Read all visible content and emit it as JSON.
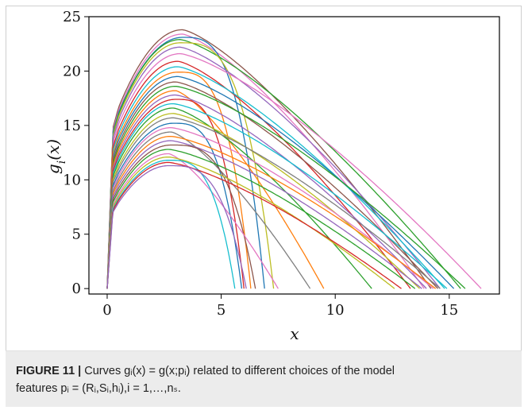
{
  "chart_data": {
    "type": "line",
    "xlabel": "x",
    "ylabel": "g_i(x)",
    "xlim": [
      -0.8,
      17.2
    ],
    "ylim": [
      -0.5,
      25
    ],
    "xticks": [
      0,
      5,
      10,
      15
    ],
    "yticks": [
      0,
      5,
      10,
      15,
      20,
      25
    ],
    "grid": false,
    "legend": "none",
    "curves": [
      {
        "peak": 23.8,
        "xpeak": 3.3,
        "end": 14.2,
        "color": "#8c564b"
      },
      {
        "peak": 23.4,
        "xpeak": 3.3,
        "end": 13.9,
        "color": "#e377c2"
      },
      {
        "peak": 23.1,
        "xpeak": 3.3,
        "end": 6.9,
        "color": "#1f77b4"
      },
      {
        "peak": 22.9,
        "xpeak": 3.2,
        "end": 15.5,
        "color": "#2ca02c"
      },
      {
        "peak": 22.6,
        "xpeak": 3.2,
        "end": 7.3,
        "color": "#bcbd22"
      },
      {
        "peak": 22.2,
        "xpeak": 3.2,
        "end": 14.6,
        "color": "#9467bd"
      },
      {
        "peak": 21.6,
        "xpeak": 3.2,
        "end": 16.4,
        "color": "#e377c2"
      },
      {
        "peak": 20.9,
        "xpeak": 3.1,
        "end": 13.3,
        "color": "#d62728"
      },
      {
        "peak": 20.4,
        "xpeak": 3.1,
        "end": 14.8,
        "color": "#17becf"
      },
      {
        "peak": 19.9,
        "xpeak": 3.1,
        "end": 6.3,
        "color": "#ff7f0e"
      },
      {
        "peak": 19.5,
        "xpeak": 3.1,
        "end": 15.2,
        "color": "#1f77b4"
      },
      {
        "peak": 19.0,
        "xpeak": 3.0,
        "end": 14.5,
        "color": "#8c564b"
      },
      {
        "peak": 18.6,
        "xpeak": 3.0,
        "end": 15.7,
        "color": "#2ca02c"
      },
      {
        "peak": 18.2,
        "xpeak": 3.0,
        "end": 9.5,
        "color": "#ff7f0e"
      },
      {
        "peak": 17.8,
        "xpeak": 3.0,
        "end": 14.0,
        "color": "#9467bd"
      },
      {
        "peak": 17.4,
        "xpeak": 3.0,
        "end": 6.0,
        "color": "#d62728"
      },
      {
        "peak": 17.0,
        "xpeak": 2.9,
        "end": 14.9,
        "color": "#17becf"
      },
      {
        "peak": 16.6,
        "xpeak": 2.9,
        "end": 11.6,
        "color": "#2ca02c"
      },
      {
        "peak": 16.1,
        "xpeak": 2.9,
        "end": 13.7,
        "color": "#bcbd22"
      },
      {
        "peak": 15.7,
        "xpeak": 2.9,
        "end": 14.6,
        "color": "#7f7f7f"
      },
      {
        "peak": 15.2,
        "xpeak": 2.9,
        "end": 5.9,
        "color": "#1f77b4"
      },
      {
        "peak": 14.8,
        "xpeak": 2.8,
        "end": 14.3,
        "color": "#e377c2"
      },
      {
        "peak": 14.4,
        "xpeak": 2.8,
        "end": 8.9,
        "color": "#7f7f7f"
      },
      {
        "peak": 14.0,
        "xpeak": 2.8,
        "end": 14.4,
        "color": "#ff7f0e"
      },
      {
        "peak": 13.6,
        "xpeak": 2.8,
        "end": 13.8,
        "color": "#9467bd"
      },
      {
        "peak": 13.2,
        "xpeak": 2.8,
        "end": 6.5,
        "color": "#8c564b"
      },
      {
        "peak": 12.8,
        "xpeak": 2.7,
        "end": 13.5,
        "color": "#2ca02c"
      },
      {
        "peak": 12.4,
        "xpeak": 2.7,
        "end": 7.5,
        "color": "#e377c2"
      },
      {
        "peak": 12.1,
        "xpeak": 2.7,
        "end": 12.6,
        "color": "#bcbd22"
      },
      {
        "peak": 11.8,
        "xpeak": 2.7,
        "end": 5.6,
        "color": "#17becf"
      },
      {
        "peak": 11.6,
        "xpeak": 2.7,
        "end": 12.9,
        "color": "#d62728"
      },
      {
        "peak": 11.3,
        "xpeak": 2.7,
        "end": 6.1,
        "color": "#9467bd"
      }
    ]
  },
  "caption": {
    "label": "FIGURE 11 |",
    "text_line1": " Curves gᵢ(x) = g(x;pᵢ) related to different choices of the model",
    "text_line2": "features pᵢ = (Rᵢ,Sᵢ,hᵢ),i = 1,…,nₛ."
  }
}
